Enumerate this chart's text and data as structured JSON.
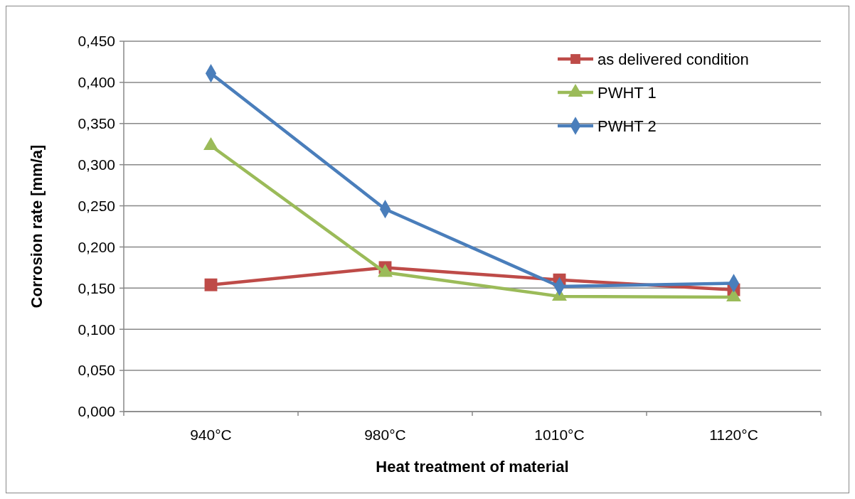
{
  "chart_data": {
    "type": "line",
    "xlabel": "Heat treatment of material",
    "ylabel": "Corrosion rate [mm/a]",
    "categories": [
      "940°C",
      "980°C",
      "1010°C",
      "1120°C"
    ],
    "series": [
      {
        "name": "as delivered condition",
        "color": "#be4b48",
        "marker": "square",
        "values": [
          0.154,
          0.175,
          0.16,
          0.148
        ]
      },
      {
        "name": "PWHT 1",
        "color": "#9bbb59",
        "marker": "triangle",
        "values": [
          0.323,
          0.169,
          0.14,
          0.139
        ]
      },
      {
        "name": "PWHT 2",
        "color": "#4a7ebb",
        "marker": "diamond",
        "values": [
          0.411,
          0.246,
          0.152,
          0.156
        ]
      }
    ],
    "ylim": [
      0,
      0.45
    ],
    "yticks": [
      {
        "value": 0,
        "label": "0,000"
      },
      {
        "value": 0.05,
        "label": "0,050"
      },
      {
        "value": 0.1,
        "label": "0,100"
      },
      {
        "value": 0.15,
        "label": "0,150"
      },
      {
        "value": 0.2,
        "label": "0,200"
      },
      {
        "value": 0.25,
        "label": "0,250"
      },
      {
        "value": 0.3,
        "label": "0,300"
      },
      {
        "value": 0.35,
        "label": "0,350"
      },
      {
        "value": 0.4,
        "label": "0,400"
      },
      {
        "value": 0.45,
        "label": "0,450"
      }
    ],
    "grid": "y",
    "legend": "top right",
    "line_style": "solid"
  }
}
